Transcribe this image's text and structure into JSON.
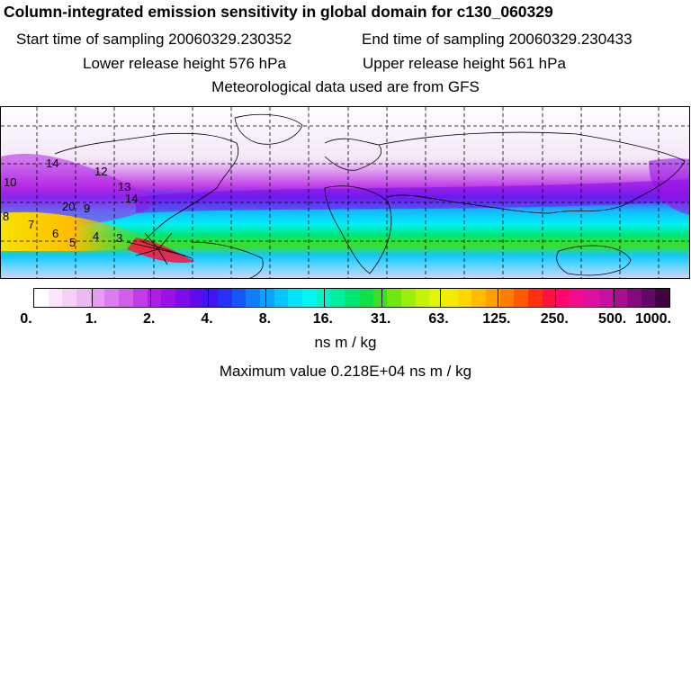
{
  "header": {
    "title": "Column-integrated emission sensitivity in global domain for c130_060329",
    "start_label": "Start time of sampling",
    "start_value": "20060329.230352",
    "end_label": "End time of sampling",
    "end_value": "20060329.230433",
    "lower_label": "Lower release height",
    "lower_value": "576 hPa",
    "upper_label": "Upper release height",
    "upper_value": "561 hPa",
    "met_line": "Meteorological data used are from GFS"
  },
  "map": {
    "trajectory_labels": [
      "14",
      "12",
      "13",
      "14",
      "10",
      "20",
      "9",
      "8",
      "7",
      "6",
      "5",
      "4",
      "3"
    ]
  },
  "colorbar": {
    "labels": [
      "0.",
      "1.",
      "2.",
      "4.",
      "8.",
      "16.",
      "31.",
      "63.",
      "125.",
      "250.",
      "500.",
      "1000."
    ],
    "colors": [
      "#ffffff",
      "#fbe6fb",
      "#f6d0f7",
      "#efb7f4",
      "#e79bf1",
      "#dc7ded",
      "#d05ee9",
      "#c13ce6",
      "#b11ee3",
      "#9a10e6",
      "#7d0bea",
      "#5f0af0",
      "#4312f5",
      "#2530f8",
      "#1558fa",
      "#0d7efc",
      "#08a4fd",
      "#05c6fe",
      "#02e4fe",
      "#00f7f0",
      "#00f5c8",
      "#00ef9e",
      "#00e676",
      "#10e04a",
      "#3be021",
      "#6be80f",
      "#9cef0a",
      "#c4f307",
      "#e4f404",
      "#f6ea02",
      "#ffd600",
      "#ffbc00",
      "#ff9f00",
      "#ff7e00",
      "#ff5a00",
      "#ff3010",
      "#ff1040",
      "#fd0a6e",
      "#f00d90",
      "#df10a0",
      "#c810a0",
      "#a80d92",
      "#860a7e",
      "#640866",
      "#400440"
    ],
    "unit": "ns m / kg"
  },
  "footer": {
    "max_label": "Maximum value",
    "max_value": "0.218E+04",
    "max_unit": "ns m / kg"
  }
}
